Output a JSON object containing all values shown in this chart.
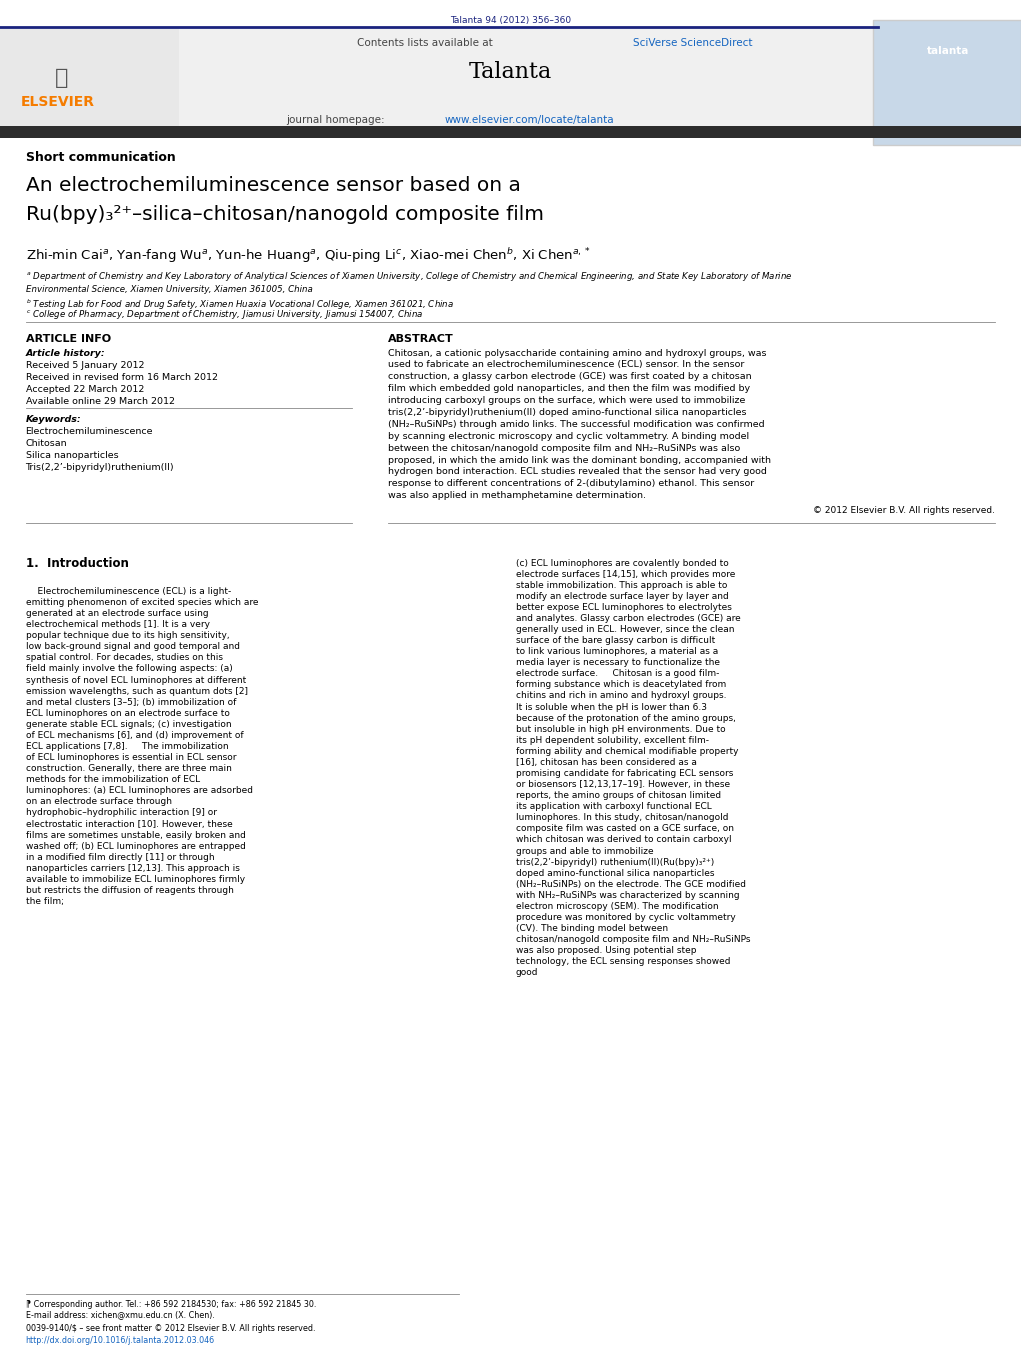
{
  "page_width": 10.21,
  "page_height": 13.51,
  "bg_color": "#ffffff",
  "top_citation": "Talanta 94 (2012) 356–360",
  "top_citation_color": "#1a237e",
  "journal_name": "Talanta",
  "contents_text": "Contents lists available at ",
  "sciverse_text": "SciVerse ScienceDirect",
  "homepage_text": "journal homepage: ",
  "homepage_url": "www.elsevier.com/locate/talanta",
  "section_label": "Short communication",
  "article_title_line1": "An electrochemiluminescence sensor based on a",
  "article_title_line2": "Ru(bpy)₃²⁺–silica–chitosan/nanogold composite film",
  "authors": "Zhi-min Caiᵃ, Yan-fang Wuᵃ, Yun-he Huangᵃ, Qiu-ping Liᶜ, Xiao-mei Chenᵇ, Xi Chenᵃ,*",
  "affil_a": "ᵃ Department of Chemistry and Key Laboratory of Analytical Sciences of Xiamen University, College of Chemistry and Chemical Engineering, and State Key Laboratory of Marine Environmental Science, Xiamen University, Xiamen 361005, China",
  "affil_b": "ᵇ Testing Lab for Food and Drug Safety, Xiamen Huaxia Vocational College, Xiamen 361021, China",
  "affil_c": "ᶜ College of Pharmacy, Department of Chemistry, Jiamusi University, Jiamusi 154007, China",
  "article_info_header": "ARTICLE INFO",
  "abstract_header": "ABSTRACT",
  "article_history_label": "Article history:",
  "received": "Received 5 January 2012",
  "received_revised": "Received in revised form 16 March 2012",
  "accepted": "Accepted 22 March 2012",
  "available": "Available online 29 March 2012",
  "keywords_label": "Keywords:",
  "keyword1": "Electrochemiluminescence",
  "keyword2": "Chitosan",
  "keyword3": "Silica nanoparticles",
  "keyword4": "Tris(2,2’-bipyridyl)ruthenium(II)",
  "abstract_text": "Chitosan, a cationic polysaccharide containing amino and hydroxyl groups, was used to fabricate an electrochemiluminescence (ECL) sensor. In the sensor construction, a glassy carbon electrode (GCE) was first coated by a chitosan film which embedded gold nanoparticles, and then the film was modified by introducing carboxyl groups on the surface, which were used to immobilize tris(2,2’-bipyridyl)ruthenium(II) doped amino-functional silica nanoparticles (NH₂–RuSiNPs) through amido links. The successful modification was confirmed by scanning electronic microscopy and cyclic voltammetry. A binding model between the chitosan/nanogold composite film and NH₂–RuSiNPs was also proposed, in which the amido link was the dominant bonding, accompanied with hydrogen bond interaction. ECL studies revealed that the sensor had very good response to different concentrations of 2-(dibutylamino) ethanol. This sensor was also applied in methamphetamine determination.",
  "copyright": "© 2012 Elsevier B.V. All rights reserved.",
  "intro_header": "1.  Introduction",
  "intro_text_left": "    Electrochemiluminescence (ECL) is a light-emitting phenomenon of excited species which are generated at an electrode surface using electrochemical methods [1]. It is a very popular technique due to its high sensitivity, low back-ground signal and good temporal and spatial control. For decades, studies on this field mainly involve the following aspects: (a) synthesis of novel ECL luminophores at different emission wavelengths, such as quantum dots [2] and metal clusters [3–5]; (b) immobilization of ECL luminophores on an electrode surface to generate stable ECL signals; (c) investigation of ECL mechanisms [6], and (d) improvement of ECL applications [7,8].\n    The immobilization of ECL luminophores is essential in ECL sensor construction. Generally, there are three main methods for the immobilization of ECL luminophores: (a) ECL luminophores are adsorbed on an electrode surface through hydrophobic–hydrophilic interaction [9] or electrostatic interaction [10]. However, these films are sometimes unstable, easily broken and washed off; (b) ECL luminophores are entrapped in a modified film directly [11] or through nanoparticles carriers [12,13]. This approach is available to immobilize ECL luminophores firmly but restricts the diffusion of reagents through the film;",
  "intro_text_right": "(c) ECL luminophores are covalently bonded to electrode surfaces [14,15], which provides more stable immobilization. This approach is able to modify an electrode surface layer by layer and better expose ECL luminophores to electrolytes and analytes. Glassy carbon electrodes (GCE) are generally used in ECL. However, since the clean surface of the bare glassy carbon is difficult to link various luminophores, a material as a media layer is necessary to functionalize the electrode surface.\n    Chitosan is a good film-forming substance which is deacetylated from chitins and rich in amino and hydroxyl groups. It is soluble when the pH is lower than 6.3 because of the protonation of the amino groups, but insoluble in high pH environments. Due to its pH dependent solubility, excellent film-forming ability and chemical modifiable property [16], chitosan has been considered as a promising candidate for fabricating ECL sensors or biosensors [12,13,17–19]. However, in these reports, the amino groups of chitosan limited its application with carboxyl functional ECL luminophores. In this study, chitosan/nanogold composite film was casted on a GCE surface, on which chitosan was derived to contain carboxyl groups and able to immobilize tris(2,2’-bipyridyl) ruthenium(II)(Ru(bpy)₃²⁺) doped amino-functional silica nanoparticles (NH₂–RuSiNPs) on the electrode. The GCE modified with NH₂–RuSiNPs was characterized by scanning electron microscopy (SEM). The modification procedure was monitored by cyclic voltammetry (CV). The binding model between chitosan/nanogold composite film and NH₂–RuSiNPs was also proposed. Using potential step technology, the ECL sensing responses showed good",
  "footer_line1": "⁋ Corresponding author. Tel.: +86 592 2184530; fax: +86 592 21845 30.",
  "footer_line2": "E-mail address: xichen@xmu.edu.cn (X. Chen).",
  "footer_line3": "0039-9140/$ – see front matter © 2012 Elsevier B.V. All rights reserved.",
  "footer_line4": "http://dx.doi.org/10.1016/j.talanta.2012.03.046",
  "header_bar_color": "#1a237e",
  "elsevier_orange": "#f57c00",
  "link_color": "#1565c0",
  "dark_bar_color": "#2d2d2d"
}
